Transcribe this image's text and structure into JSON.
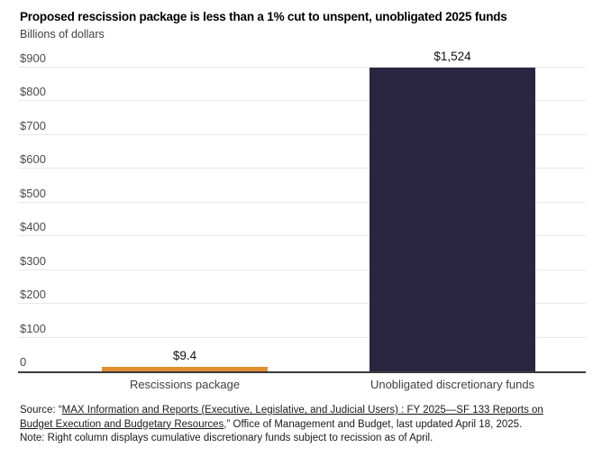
{
  "chart_data": {
    "type": "bar",
    "title": "Proposed rescission package is less than a 1% cut to unspent, unobligated 2025 funds",
    "subtitle": "Billions of dollars",
    "categories": [
      "Rescissions package",
      "Unobligated discretionary funds"
    ],
    "values": [
      9.4,
      1524
    ],
    "value_labels": [
      "$9.4",
      "$1,524"
    ],
    "bar_colors": [
      "#E0902E",
      "#2A2540"
    ],
    "xlabel": "",
    "ylabel": "Billions of dollars",
    "ylim": [
      0,
      900
    ],
    "yticks": [
      {
        "value": 0,
        "label": "0"
      },
      {
        "value": 100,
        "label": "$100"
      },
      {
        "value": 200,
        "label": "$200"
      },
      {
        "value": 300,
        "label": "$300"
      },
      {
        "value": 400,
        "label": "$400"
      },
      {
        "value": 500,
        "label": "$500"
      },
      {
        "value": 600,
        "label": "$600"
      },
      {
        "value": 700,
        "label": "$700"
      },
      {
        "value": 800,
        "label": "$800"
      },
      {
        "value": 900,
        "label": "$900"
      }
    ],
    "grid": "horizontal",
    "legend": "none",
    "colors": {
      "gridline": "#e8e8e8",
      "axis_line": "#3b3b3b",
      "tick_text": "#4b4b4b"
    }
  },
  "footer": {
    "source_prefix": "Source: “",
    "source_link": "MAX Information and Reports (Executive, Legislative, and Judicial Users) : FY 2025—SF 133 Reports on Budget Execution and Budgetary Resources,",
    "source_suffix": "” Office of Management and Budget, last updated April 18, 2025.",
    "note": "Note: Right column displays cumulative discretionary funds subject to recission as of April."
  }
}
